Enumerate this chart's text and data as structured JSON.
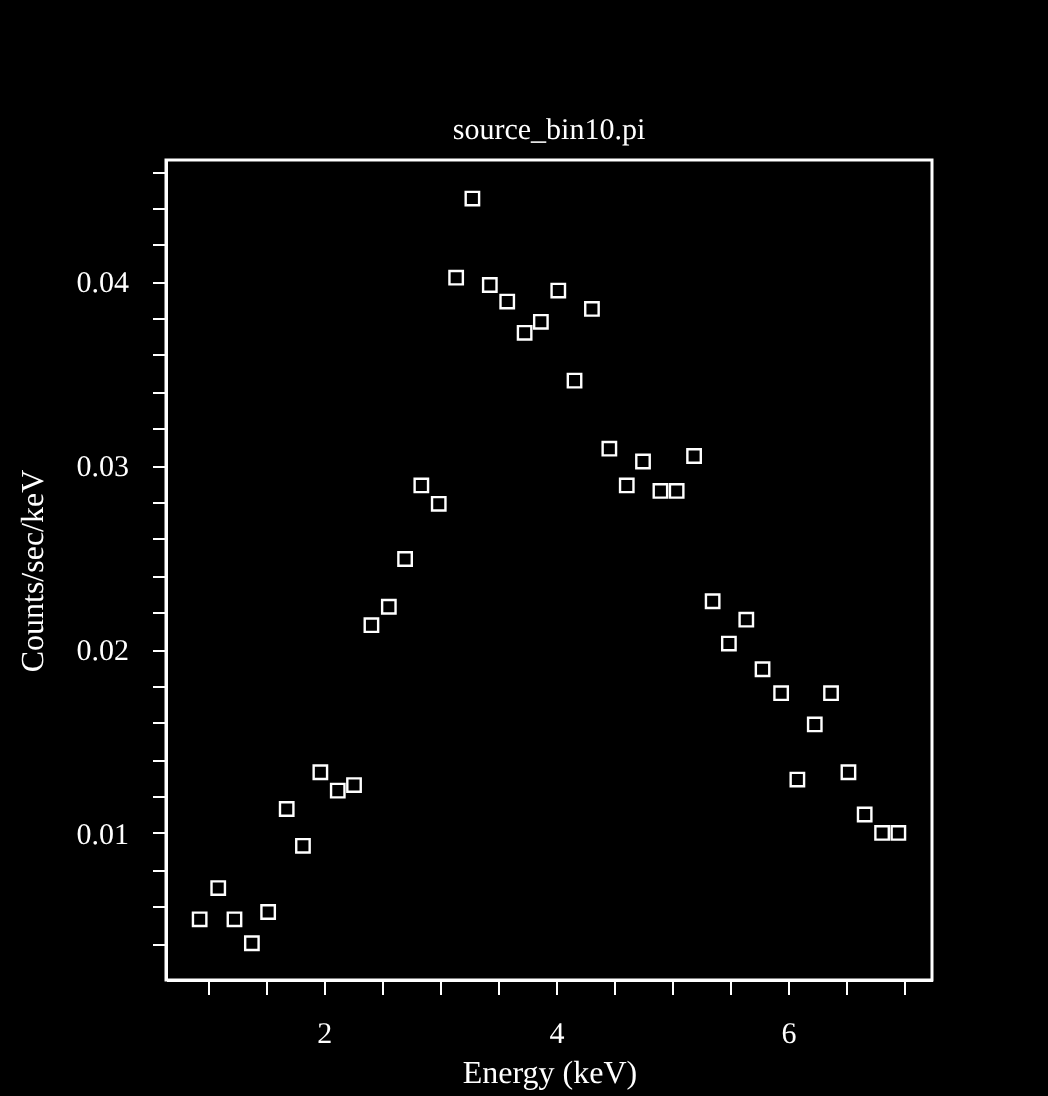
{
  "chart_data": {
    "type": "scatter",
    "title": "source_bin10.pi",
    "xlabel": "Energy (keV)",
    "ylabel": "Counts/sec/keV",
    "x": [
      0.93,
      1.09,
      1.23,
      1.38,
      1.52,
      1.68,
      1.82,
      1.97,
      2.12,
      2.26,
      2.41,
      2.56,
      2.7,
      2.84,
      2.99,
      3.14,
      3.28,
      3.43,
      3.58,
      3.73,
      3.87,
      4.02,
      4.16,
      4.31,
      4.46,
      4.61,
      4.75,
      4.9,
      5.04,
      5.19,
      5.35,
      5.49,
      5.64,
      5.78,
      5.94,
      6.08,
      6.23,
      6.37,
      6.52,
      6.66,
      6.81,
      6.95
    ],
    "series": [
      {
        "color": "#ffffff",
        "values": [
          0.0053,
          0.007,
          0.0053,
          0.004,
          0.0057,
          0.0113,
          0.0093,
          0.0133,
          0.0123,
          0.0126,
          0.0213,
          0.0223,
          0.0249,
          0.0289,
          0.0279,
          0.0402,
          0.0445,
          0.0398,
          0.0389,
          0.0372,
          0.0378,
          0.0395,
          0.0346,
          0.0385,
          0.0309,
          0.0289,
          0.0302,
          0.0286,
          0.0286,
          0.0305,
          0.0226,
          0.0203,
          0.0216,
          0.0189,
          0.0176,
          0.0129,
          0.0159,
          0.0176,
          0.0133,
          0.011,
          0.01,
          0.01
        ]
      }
    ],
    "xlim": [
      0.64,
      7.24
    ],
    "ylim": [
      0.002,
      0.0466
    ],
    "xticks": [
      {
        "value": 1,
        "label": null
      },
      {
        "value": 1.5,
        "label": null
      },
      2,
      {
        "value": 2.5,
        "label": null
      },
      {
        "value": 3,
        "label": null
      },
      {
        "value": 3.5,
        "label": null
      },
      4,
      {
        "value": 4.5,
        "label": null
      },
      {
        "value": 5,
        "label": null
      },
      {
        "value": 5.5,
        "label": null
      },
      6,
      {
        "value": 6.5,
        "label": null
      },
      {
        "value": 7,
        "label": null
      }
    ],
    "yticks": [
      {
        "value": 0.004,
        "label": null
      },
      {
        "value": 0.006,
        "label": null
      },
      {
        "value": 0.008,
        "label": null
      },
      0.01,
      {
        "value": 0.012,
        "label": null
      },
      {
        "value": 0.014,
        "label": null
      },
      {
        "value": 0.016,
        "label": null
      },
      {
        "value": 0.018,
        "label": null
      },
      0.02,
      {
        "value": 0.022,
        "label": null
      },
      {
        "value": 0.024,
        "label": null
      },
      {
        "value": 0.026,
        "label": null
      },
      {
        "value": 0.028,
        "label": null
      },
      0.03,
      {
        "value": 0.032,
        "label": null
      },
      {
        "value": 0.034,
        "label": null
      },
      {
        "value": 0.036,
        "label": null
      },
      {
        "value": 0.038,
        "label": null
      },
      0.04,
      {
        "value": 0.042,
        "label": null
      },
      {
        "value": 0.044,
        "label": null
      },
      {
        "value": 0.046,
        "label": null
      }
    ],
    "grid": false,
    "legend": false,
    "marker": "square"
  }
}
